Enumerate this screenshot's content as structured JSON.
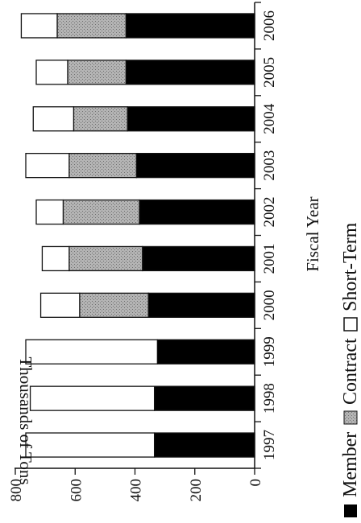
{
  "chart_data": {
    "type": "bar",
    "stacked": true,
    "orientation": "vertical (figure rotated 90 degrees)",
    "xlabel": "Fiscal Year",
    "ylabel": "Thousands of Tons",
    "categories": [
      "1997",
      "1998",
      "1999",
      "2000",
      "2001",
      "2002",
      "2003",
      "2004",
      "2005",
      "2006"
    ],
    "ylim": [
      0,
      800
    ],
    "yticks": [
      0,
      200,
      400,
      600,
      800
    ],
    "series": [
      {
        "name": "Member",
        "color": "#000000",
        "values": [
          335,
          335,
          325,
          355,
          375,
          385,
          395,
          425,
          430,
          430
        ]
      },
      {
        "name": "Contract",
        "color": "#a9a9a9",
        "values": [
          0,
          0,
          0,
          230,
          245,
          255,
          225,
          180,
          195,
          230
        ]
      },
      {
        "name": "Short-Term",
        "color": "#ffffff",
        "values": [
          430,
          415,
          440,
          130,
          90,
          90,
          145,
          135,
          105,
          120
        ]
      }
    ],
    "grid": false,
    "legend": "bottom"
  }
}
